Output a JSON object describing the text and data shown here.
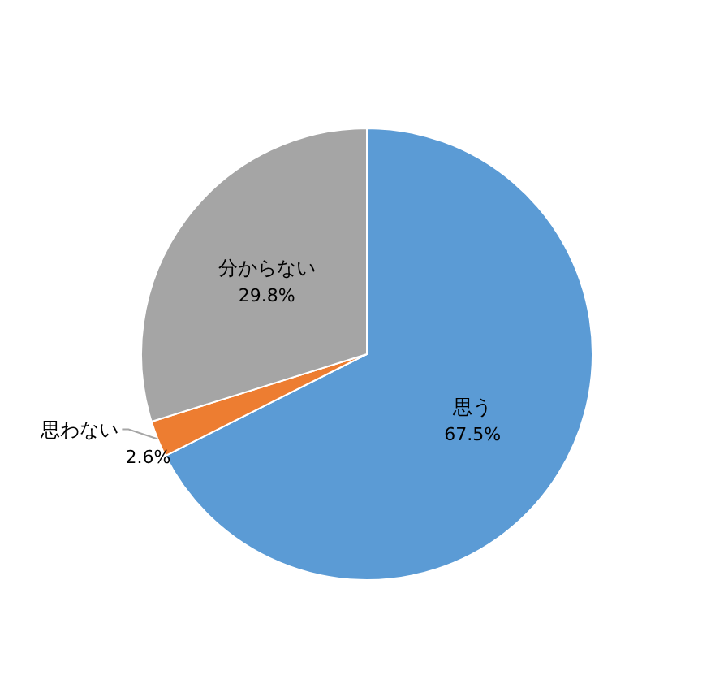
{
  "chart_data": {
    "type": "pie",
    "categories": [
      "思う",
      "思わない",
      "分からない"
    ],
    "values": [
      67.5,
      2.6,
      29.8
    ],
    "colors": [
      "#5b9bd5",
      "#ed7d31",
      "#a5a5a5"
    ],
    "value_labels": [
      "67.5%",
      "2.6%",
      "29.8%"
    ]
  }
}
